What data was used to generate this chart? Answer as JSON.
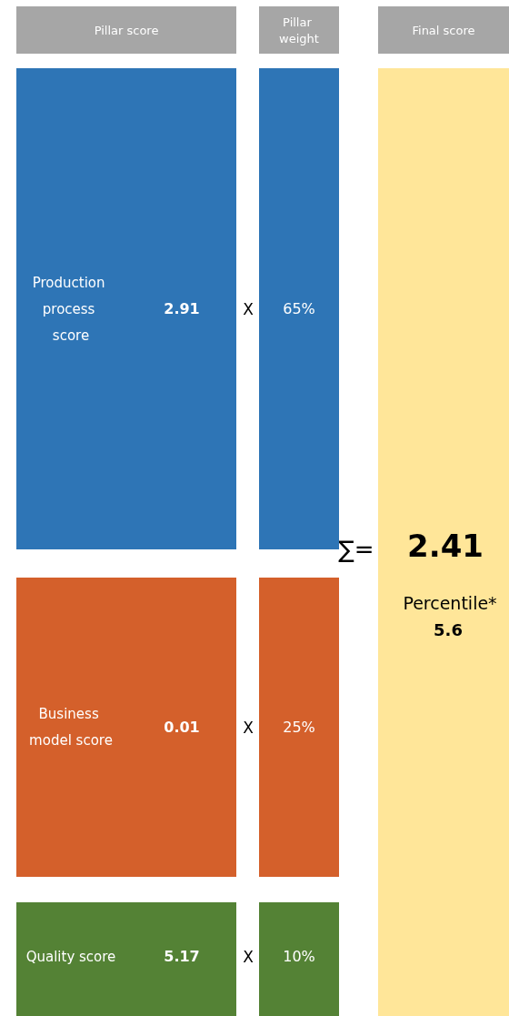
{
  "chart_data": {
    "type": "other",
    "data_labels": true,
    "categories": [
      "Production process score",
      "Business model score",
      "Quality score"
    ],
    "series": [
      {
        "name": "Pillar score",
        "values": [
          2.91,
          0.01,
          5.17
        ],
        "colors": [
          "#2e75b6",
          "#d4602b",
          "#548235"
        ]
      },
      {
        "name": "Pillar weight",
        "values": [
          65,
          25,
          10
        ],
        "value_labels": [
          "65%",
          "25%",
          "10%"
        ],
        "colors": [
          "#2e75b6",
          "#d4602b",
          "#548235"
        ]
      }
    ],
    "annotations": [
      "X",
      "∑=",
      "Final score",
      "2.41",
      "Percentile*",
      "5.6"
    ]
  }
}
